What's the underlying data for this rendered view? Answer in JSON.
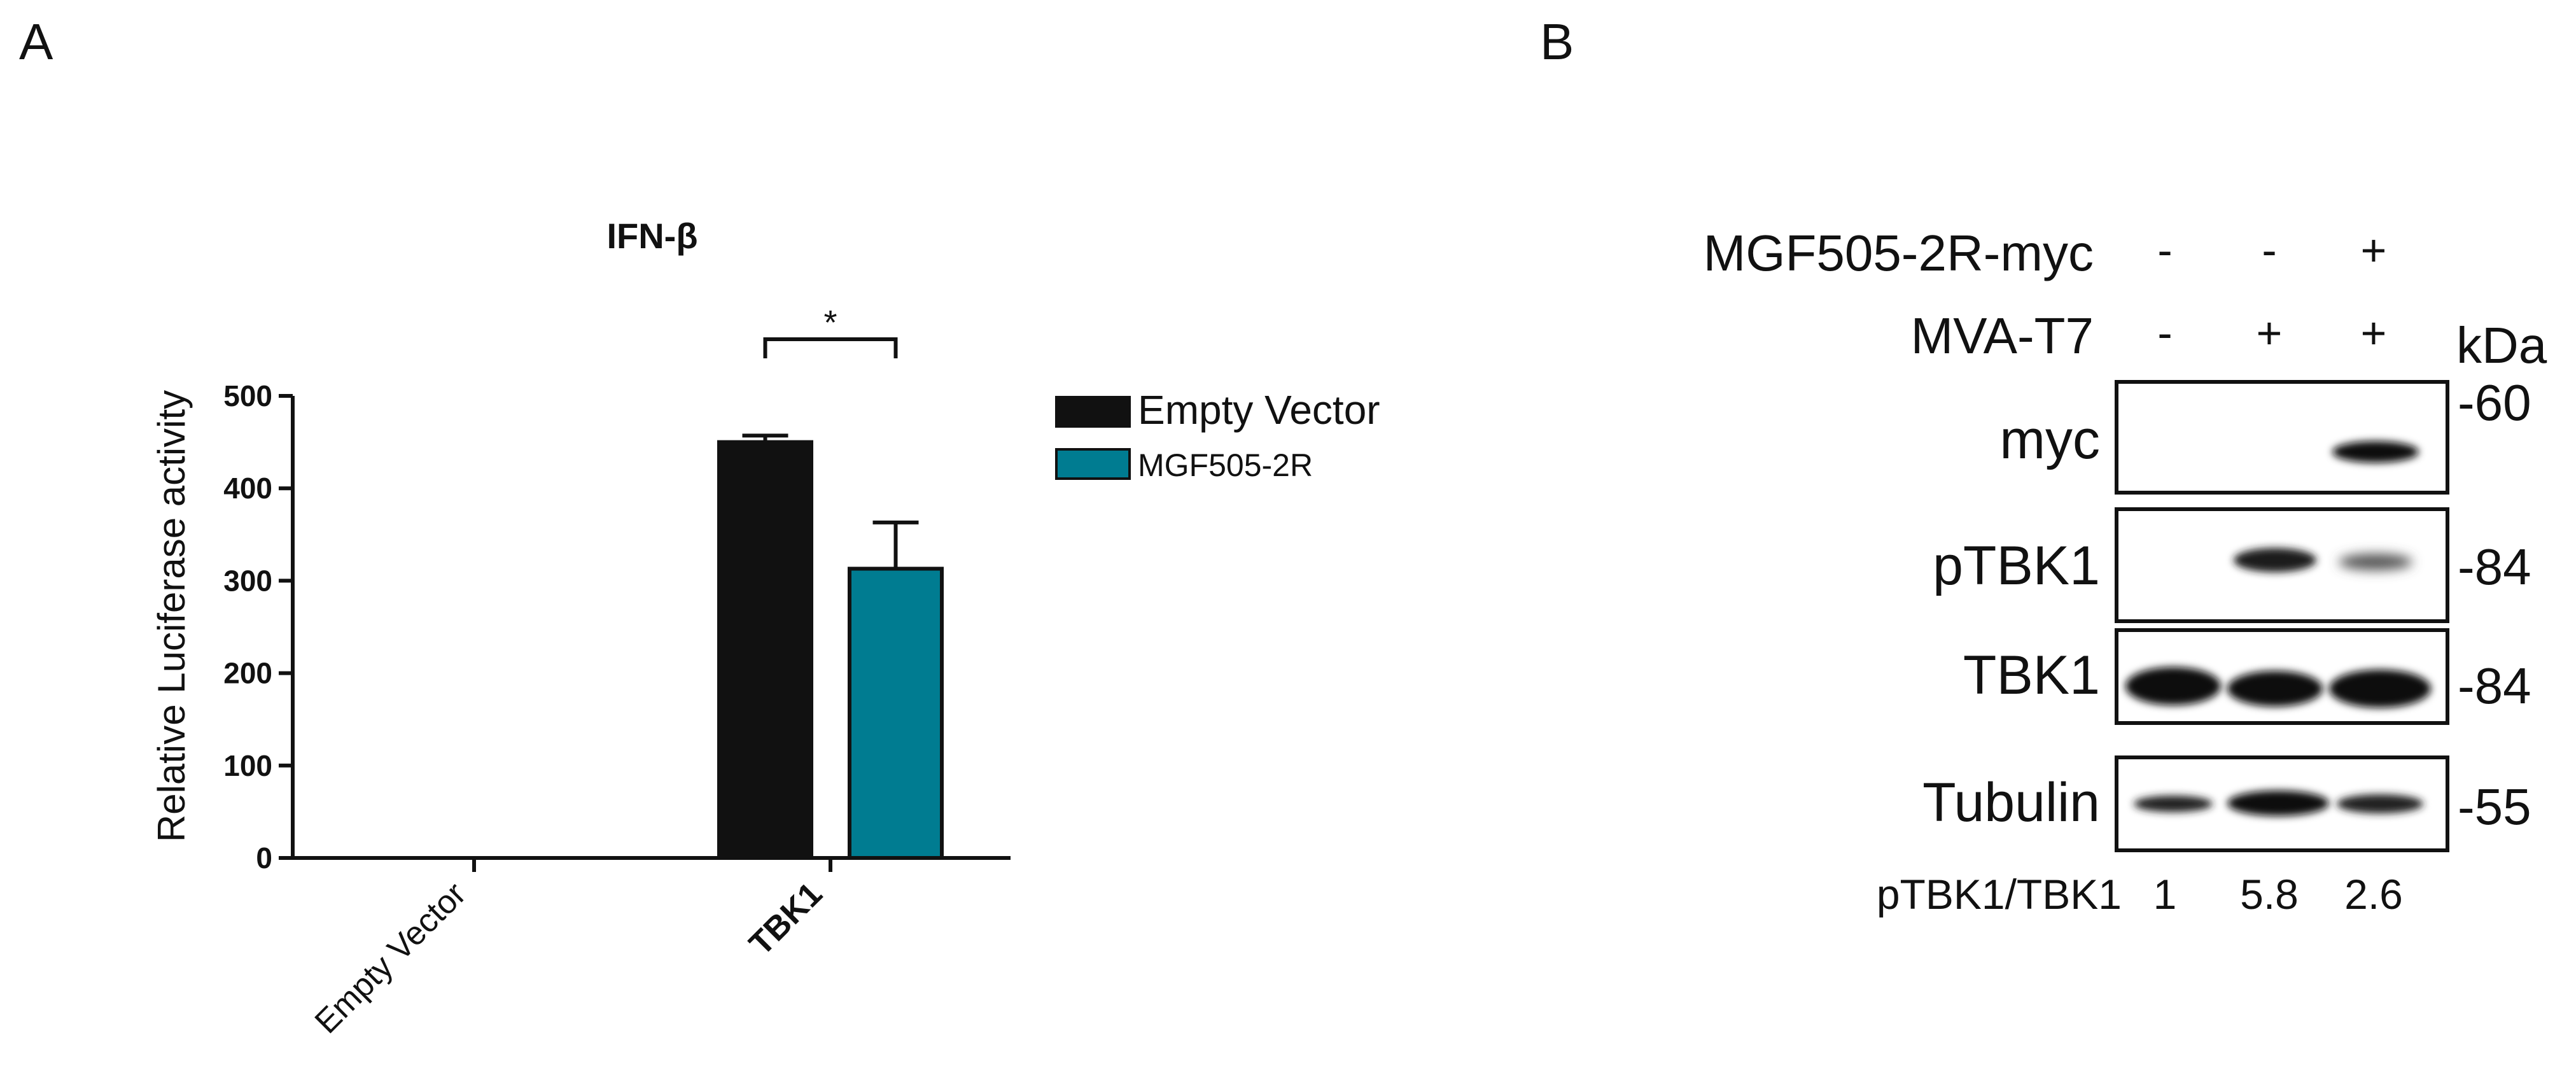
{
  "panels": {
    "a": "A",
    "b": "B"
  },
  "chart_data": {
    "type": "bar",
    "title": "IFN-β",
    "ylabel": "Relative Luciferase activity",
    "xlabel": "",
    "ylim": [
      0,
      500
    ],
    "yticks": [
      0,
      100,
      200,
      300,
      400,
      500
    ],
    "categories": [
      "Empty Vector",
      "TBK1"
    ],
    "series": [
      {
        "name": "Empty Vector",
        "color": "#111111",
        "values": [
          0,
          450
        ],
        "errors": [
          0,
          7
        ]
      },
      {
        "name": "MGF505-2R",
        "color": "#007c91",
        "values": [
          0,
          313
        ],
        "errors": [
          0,
          50
        ]
      }
    ],
    "significance": {
      "label": "*",
      "category": "TBK1"
    },
    "legend_position": "right",
    "grid": false
  },
  "blot": {
    "conditions": [
      {
        "label": "MGF505-2R-myc",
        "lanes": [
          "-",
          "-",
          "+"
        ]
      },
      {
        "label": "MVA-T7",
        "lanes": [
          "-",
          "+",
          "+"
        ]
      }
    ],
    "unit_label": "kDa",
    "rows": [
      {
        "label": "myc",
        "marker": "-60"
      },
      {
        "label": "pTBK1",
        "marker": "-84"
      },
      {
        "label": "TBK1",
        "marker": "-84"
      },
      {
        "label": "Tubulin",
        "marker": "-55"
      }
    ],
    "ratio_label": "pTBK1/TBK1",
    "ratios": [
      "1",
      "5.8",
      "2.6"
    ]
  }
}
